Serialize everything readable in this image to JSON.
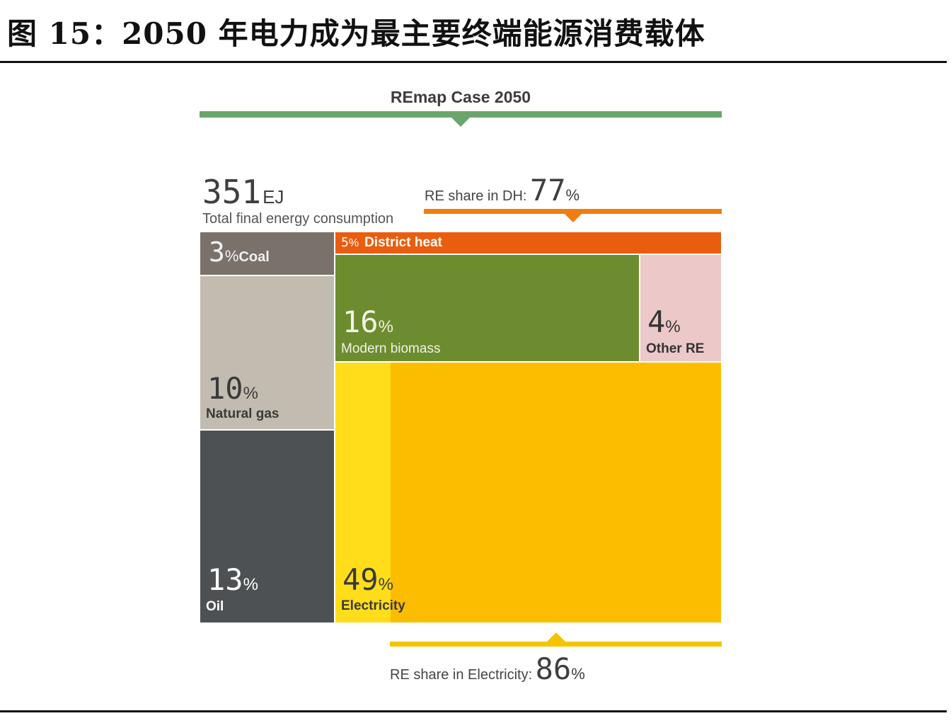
{
  "figure_title": "图 15：2050 年电力成为最主要终端能源消费载体",
  "chart_data": {
    "type": "treemap",
    "title": "REmap Case 2050",
    "total": {
      "value": "351",
      "unit": "EJ",
      "label": "Total final energy consumption"
    },
    "segments": [
      {
        "name": "Coal",
        "share": 3,
        "color": "#7a716b"
      },
      {
        "name": "Natural gas",
        "share": 10,
        "color": "#c2bcb0"
      },
      {
        "name": "Oil",
        "share": 13,
        "color": "#4d5154"
      },
      {
        "name": "District heat",
        "share": 5,
        "color": "#e95d0f"
      },
      {
        "name": "Modern biomass",
        "share": 16,
        "color": "#6d8c2f"
      },
      {
        "name": "Other RE",
        "share": 4,
        "color": "#ecc8c9"
      },
      {
        "name": "Electricity",
        "share": 49,
        "color": "#fcbd00"
      }
    ],
    "re_share_dh": {
      "label": "RE share in DH:",
      "value": "77",
      "unit": "%"
    },
    "re_share_electricity": {
      "label": "RE share in Electricity:",
      "value": "86",
      "unit": "%"
    }
  }
}
